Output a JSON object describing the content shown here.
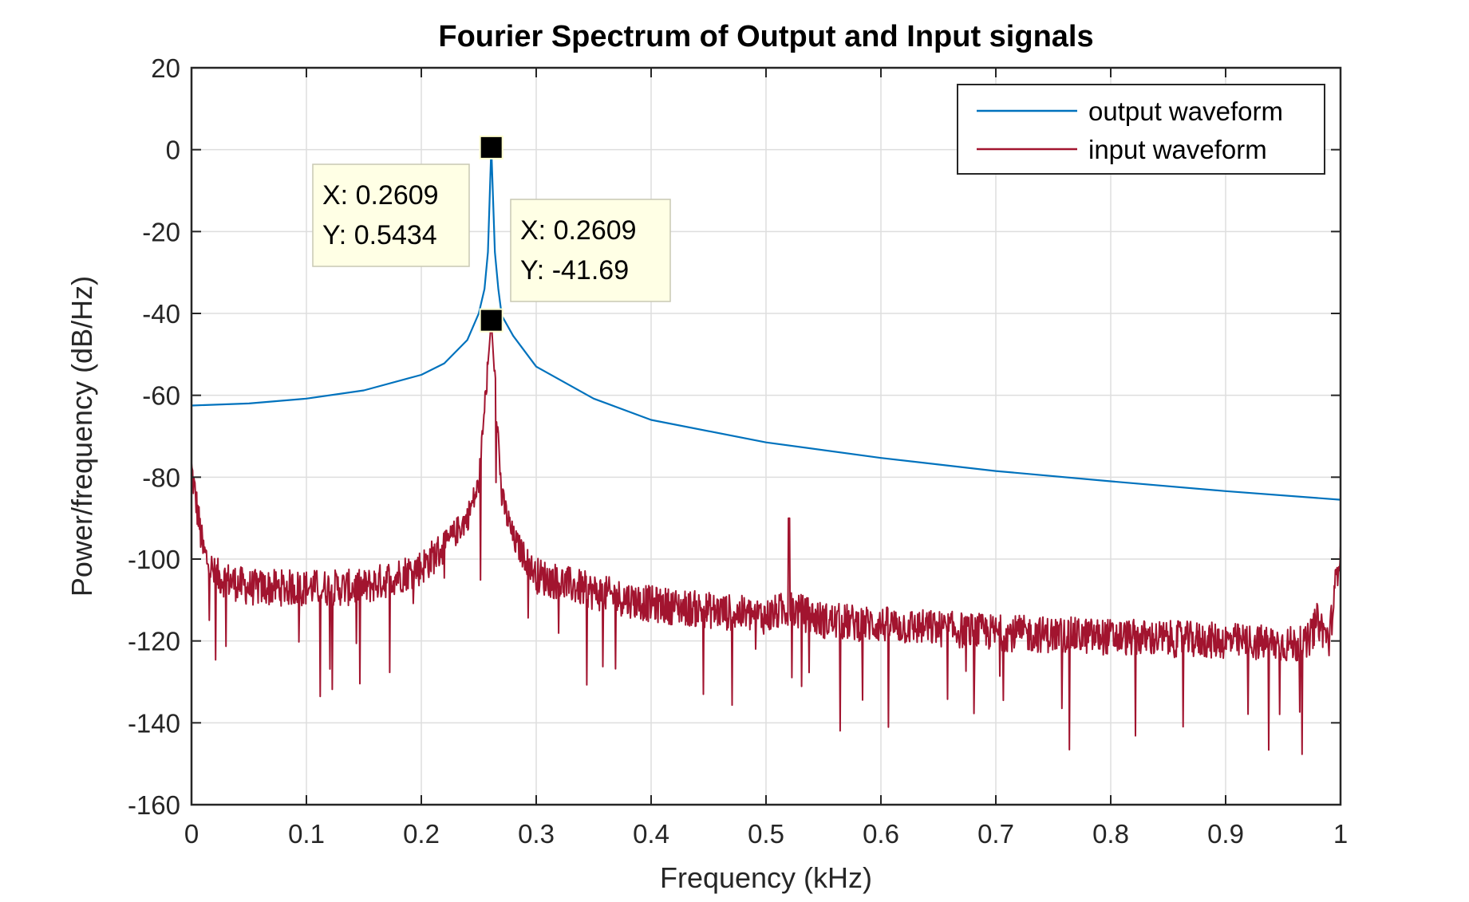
{
  "chart_data": {
    "type": "line",
    "title": "Fourier Spectrum of Output and Input signals",
    "xlabel": "Frequency (kHz)",
    "ylabel": "Power/frequency (dB/Hz)",
    "xlim": [
      0,
      1
    ],
    "ylim": [
      -160,
      20
    ],
    "xticks": [
      0,
      0.1,
      0.2,
      0.3,
      0.4,
      0.5,
      0.6,
      0.7,
      0.8,
      0.9,
      1
    ],
    "xtick_labels": [
      "0",
      "0.1",
      "0.2",
      "0.3",
      "0.4",
      "0.5",
      "0.6",
      "0.7",
      "0.8",
      "0.9",
      "1"
    ],
    "yticks": [
      20,
      0,
      -20,
      -40,
      -60,
      -80,
      -100,
      -120,
      -140,
      -160
    ],
    "ytick_labels": [
      "20",
      "0",
      "-20",
      "-40",
      "-60",
      "-80",
      "-100",
      "-120",
      "-140",
      "-160"
    ],
    "grid": true,
    "legend_position": "top-right",
    "series": [
      {
        "name": "output waveform",
        "color": "#0072bd",
        "x": [
          0,
          0.05,
          0.1,
          0.15,
          0.2,
          0.22,
          0.24,
          0.25,
          0.255,
          0.258,
          0.2609,
          0.264,
          0.267,
          0.27,
          0.28,
          0.3,
          0.35,
          0.4,
          0.5,
          0.6,
          0.7,
          0.8,
          0.9,
          1.0
        ],
        "y": [
          -62.5,
          -62.0,
          -60.8,
          -58.8,
          -55.0,
          -52.2,
          -46.5,
          -40.0,
          -34.0,
          -25.0,
          0.5434,
          -25.0,
          -34.0,
          -40.5,
          -45.5,
          -53.0,
          -60.8,
          -66.0,
          -71.5,
          -75.3,
          -78.5,
          -81.0,
          -83.4,
          -85.5
        ]
      },
      {
        "name": "input waveform",
        "color": "#a2142f",
        "x": [
          0,
          0.01,
          0.02,
          0.05,
          0.1,
          0.15,
          0.2,
          0.22,
          0.24,
          0.25,
          0.2609,
          0.27,
          0.28,
          0.3,
          0.35,
          0.4,
          0.5,
          0.52,
          0.55,
          0.6,
          0.7,
          0.8,
          0.9,
          0.97,
          0.98,
          0.99,
          1.0
        ],
        "y": [
          -78,
          -98,
          -104,
          -107,
          -107,
          -107,
          -102,
          -97,
          -90,
          -82,
          -41.69,
          -85,
          -95,
          -104,
          -108,
          -111,
          -114,
          -112,
          -115,
          -116,
          -118,
          -119,
          -120,
          -121,
          -115,
          -120,
          -96
        ]
      }
    ],
    "annotations": [
      {
        "x": 0.2609,
        "y": 0.5434,
        "line1": "X: 0.2609",
        "line2": "Y: 0.5434"
      },
      {
        "x": 0.2609,
        "y": -41.69,
        "line1": "X: 0.2609",
        "line2": "Y: -41.69"
      }
    ]
  }
}
